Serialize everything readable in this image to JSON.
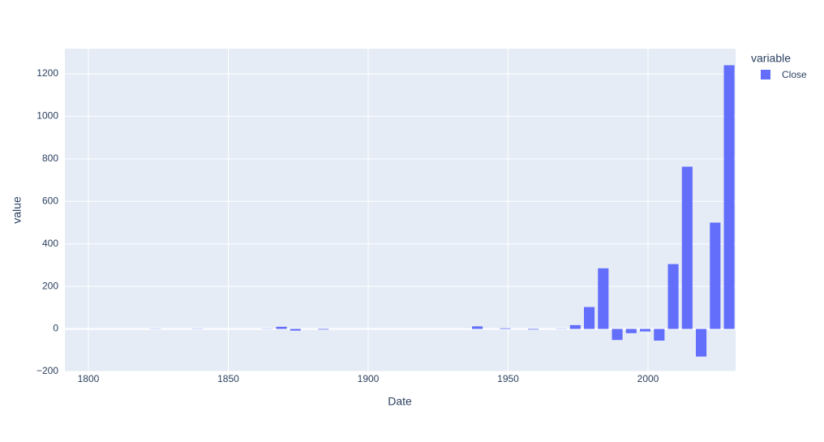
{
  "chart_data": {
    "type": "bar",
    "x_label": "Date",
    "y_label": "value",
    "legend_title": "variable",
    "series": [
      {
        "name": "Close",
        "color": "#636efa",
        "x": [
          1804,
          1809,
          1814,
          1819,
          1824,
          1829,
          1834,
          1839,
          1844,
          1849,
          1854,
          1859,
          1864,
          1869,
          1874,
          1879,
          1884,
          1889,
          1894,
          1899,
          1904,
          1909,
          1914,
          1919,
          1924,
          1929,
          1934,
          1939,
          1944,
          1949,
          1954,
          1959,
          1964,
          1969,
          1974,
          1979,
          1984,
          1989,
          1994,
          1999,
          2004,
          2009,
          2014,
          2019,
          2024,
          2029
        ],
        "values": [
          0,
          0,
          0,
          0,
          -1,
          0,
          0,
          -1,
          0,
          0,
          0,
          0,
          1,
          10,
          -8,
          0,
          -3,
          0,
          0,
          0,
          0,
          0,
          0,
          0,
          0,
          0,
          0,
          12,
          0,
          3,
          0,
          -3,
          0,
          1,
          18,
          103,
          285,
          -52,
          -20,
          -12,
          -55,
          305,
          763,
          -130,
          500,
          1240
        ]
      }
    ],
    "bar_width": 3.8,
    "xlim": [
      1791.6,
      2031.3
    ],
    "xticks": [
      1800,
      1850,
      1900,
      1950,
      2000
    ],
    "ylim": [
      -200,
      1318
    ],
    "yticks": [
      {
        "value": -200,
        "label": "−200"
      },
      0,
      200,
      400,
      600,
      800,
      1000,
      1200
    ],
    "grid": true
  }
}
